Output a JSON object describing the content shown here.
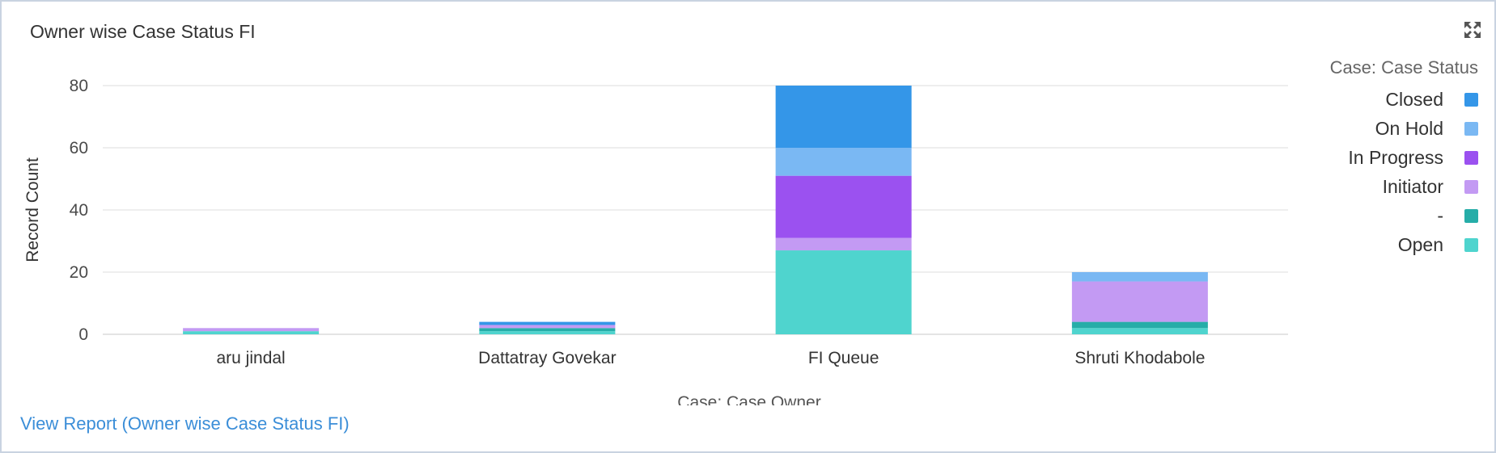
{
  "card": {
    "title": "Owner wise Case Status FI",
    "link_text": "View Report (Owner wise Case Status FI)"
  },
  "icons": {
    "expand": "expand-icon"
  },
  "chart_data": {
    "type": "bar",
    "stacked": true,
    "categories": [
      "aru jindal",
      "Dattatray Govekar",
      "FI Queue",
      "Shruti Khodabole"
    ],
    "series": [
      {
        "name": "Open",
        "color": "#4fd4ce",
        "values": [
          1,
          1,
          27,
          2
        ]
      },
      {
        "name": "-",
        "color": "#26ada8",
        "values": [
          0,
          1,
          0,
          2
        ]
      },
      {
        "name": "Initiator",
        "color": "#c39af3",
        "values": [
          1,
          1,
          4,
          13
        ]
      },
      {
        "name": "In Progress",
        "color": "#9b51f0",
        "values": [
          0,
          0,
          20,
          0
        ]
      },
      {
        "name": "On Hold",
        "color": "#7ab8f3",
        "values": [
          0,
          0,
          9,
          3
        ]
      },
      {
        "name": "Closed",
        "color": "#3496e8",
        "values": [
          0,
          1,
          20,
          0
        ]
      }
    ],
    "legend_order": [
      "Closed",
      "On Hold",
      "In Progress",
      "Initiator",
      "-",
      "Open"
    ],
    "legend_title": "Case: Case Status",
    "xlabel": "Case: Case Owner",
    "ylabel": "Record Count",
    "ylim": [
      0,
      80
    ],
    "yticks": [
      0,
      20,
      40,
      60,
      80
    ],
    "grid": true,
    "legend_position": "right"
  }
}
